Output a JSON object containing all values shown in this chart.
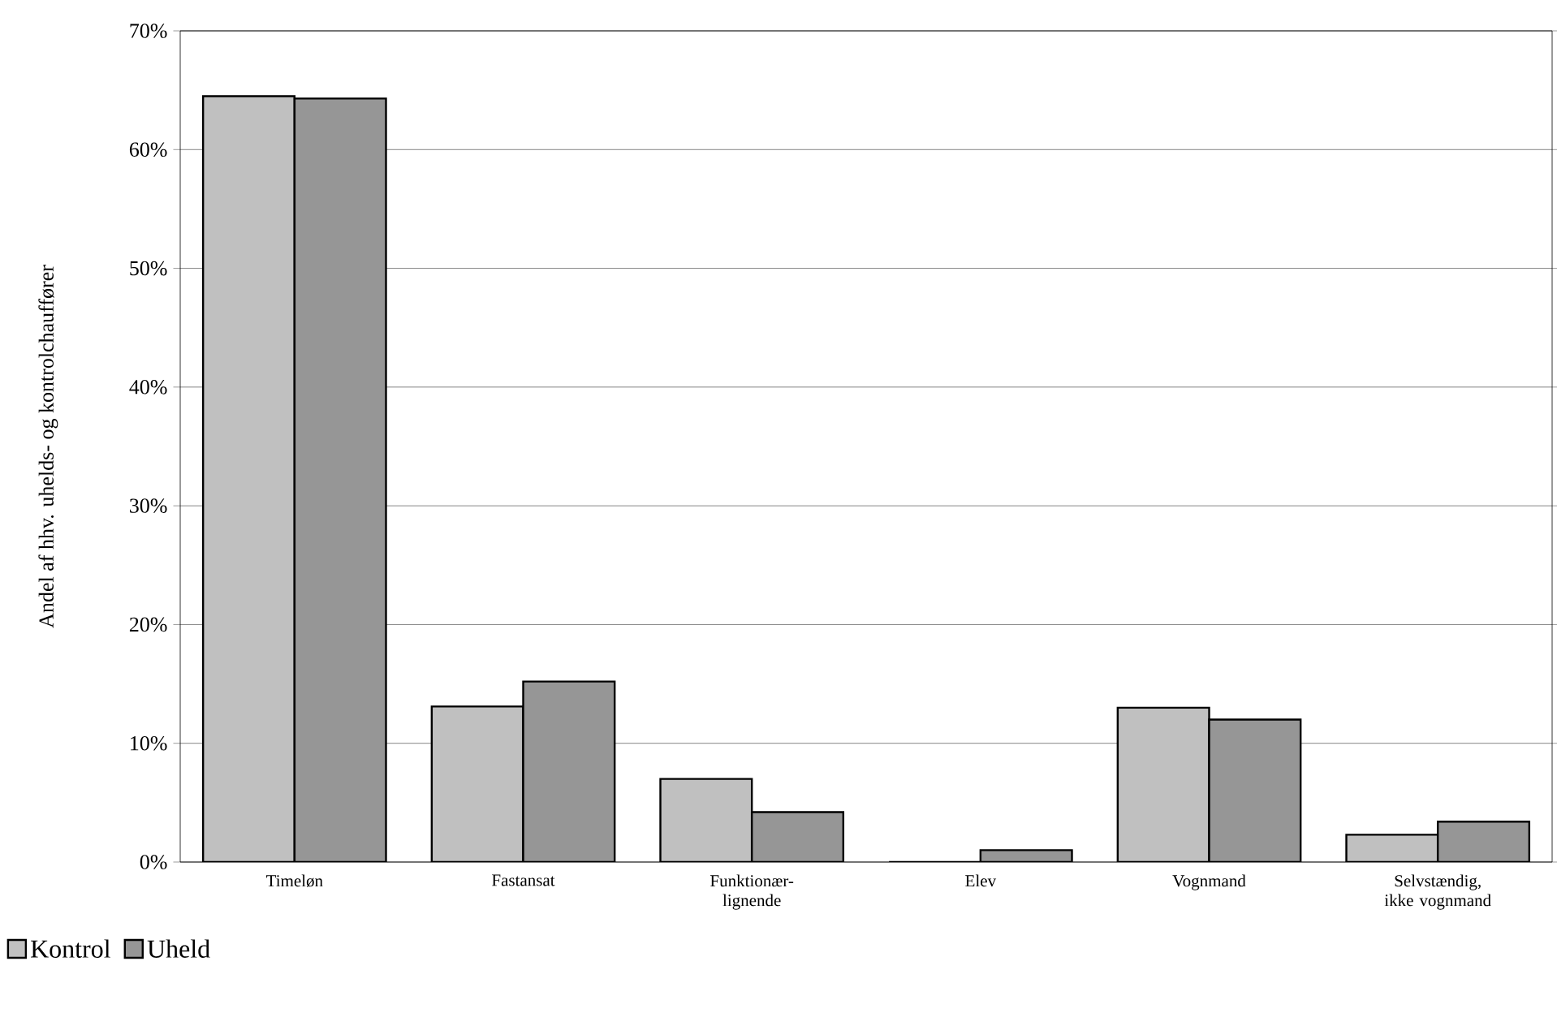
{
  "chart_data": {
    "type": "bar",
    "ylabel": "Andel af hhv. uhelds- og kontrolchauffører",
    "categories": [
      "Timeløn",
      "Fastansat",
      "Funktionær- lignende",
      "Elev",
      "Vognmand",
      "Selvstændig, ikke vognmand"
    ],
    "series": [
      {
        "name": "Kontrol",
        "color": "#c0c0c0",
        "values": [
          64.5,
          13.1,
          7.0,
          0,
          13.0,
          2.3
        ]
      },
      {
        "name": "Uheld",
        "color": "#969696",
        "values": [
          64.3,
          15.2,
          4.2,
          1.0,
          12.0,
          3.4
        ]
      }
    ],
    "ylim": [
      0,
      70
    ],
    "yticks": [
      {
        "value": 0,
        "label": "0%"
      },
      {
        "value": 10,
        "label": "10%"
      },
      {
        "value": 20,
        "label": "20%"
      },
      {
        "value": 30,
        "label": "30%"
      },
      {
        "value": 40,
        "label": "40%"
      },
      {
        "value": 50,
        "label": "50%"
      },
      {
        "value": 60,
        "label": "60%"
      },
      {
        "value": 70,
        "label": "70%"
      }
    ],
    "grid": "y",
    "legend": "bottom left"
  }
}
